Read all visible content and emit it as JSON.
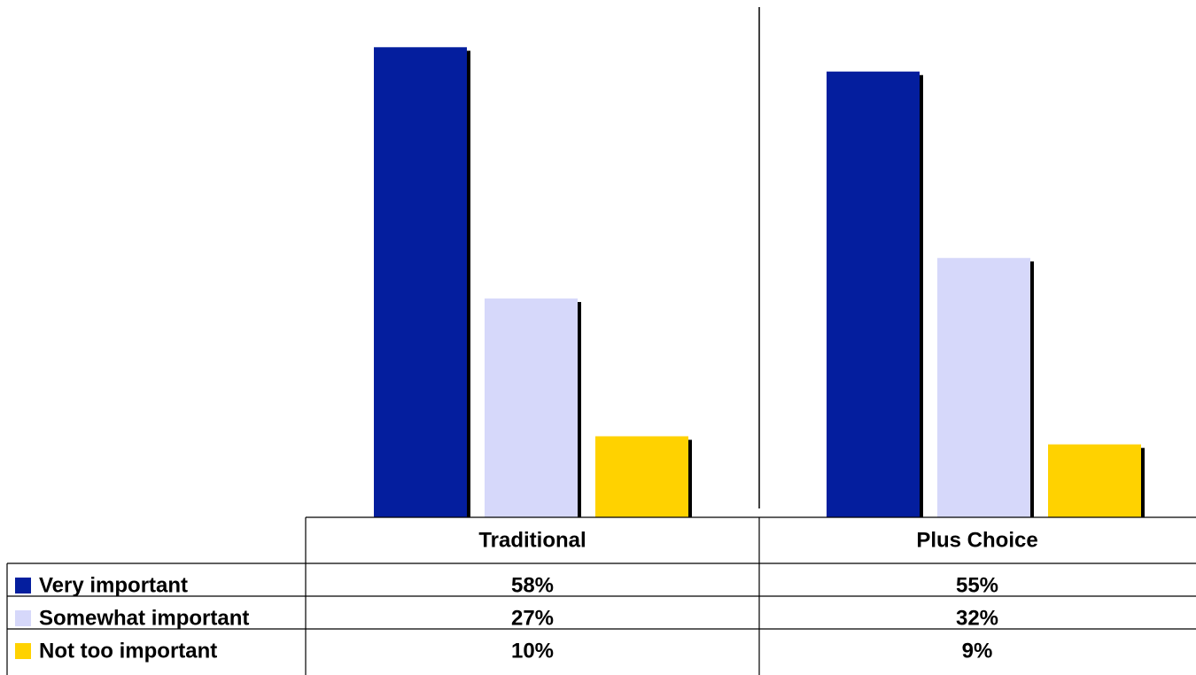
{
  "chart_data": {
    "type": "bar",
    "categories": [
      "Traditional",
      "Plus Choice"
    ],
    "series": [
      {
        "name": "Very important",
        "values": [
          58,
          55
        ],
        "labels": [
          "58%",
          "55%"
        ],
        "color": "#041E9E"
      },
      {
        "name": "Somewhat important",
        "values": [
          27,
          32
        ],
        "labels": [
          "27%",
          "32%"
        ],
        "color": "#D6D8FA"
      },
      {
        "name": "Not too important",
        "values": [
          10,
          9
        ],
        "labels": [
          "10%",
          "9%"
        ],
        "color": "#FFD200"
      }
    ],
    "title": "",
    "xlabel": "",
    "ylabel": "",
    "ylim": [
      0,
      60
    ],
    "grid": false,
    "legend": "data-table-left"
  }
}
